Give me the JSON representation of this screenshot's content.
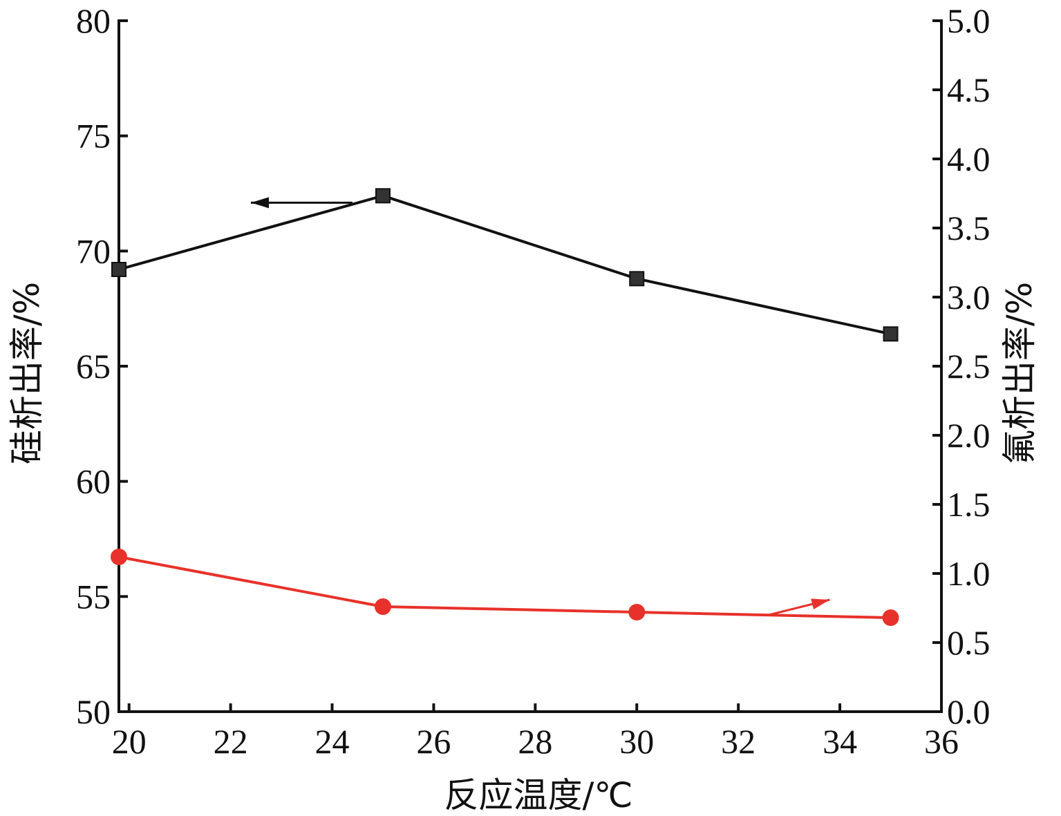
{
  "chart_data": {
    "type": "line",
    "xlabel": "反应温度/℃",
    "ylabel_left": "硅析出率/%",
    "ylabel_right": "氟析出率/%",
    "xlim": [
      19.8,
      36
    ],
    "ylim_left": [
      50,
      80
    ],
    "ylim_right": [
      0.0,
      5.0
    ],
    "x_ticks": [
      "20",
      "22",
      "24",
      "26",
      "28",
      "30",
      "32",
      "34",
      "36"
    ],
    "y_left_ticks": [
      "50",
      "55",
      "60",
      "65",
      "70",
      "75",
      "80"
    ],
    "y_right_ticks": [
      "0.0",
      "0.5",
      "1.0",
      "1.5",
      "2.0",
      "2.5",
      "3.0",
      "3.5",
      "4.0",
      "4.5",
      "5.0"
    ],
    "grid": false,
    "series": [
      {
        "axis": "left",
        "color": "#111111",
        "marker": "square",
        "x": [
          19.8,
          25,
          30,
          35
        ],
        "y": [
          69.2,
          72.4,
          68.8,
          66.4
        ]
      },
      {
        "axis": "right",
        "color": "#e8312a",
        "marker": "circle",
        "x": [
          19.8,
          25,
          30,
          35
        ],
        "y": [
          1.12,
          0.76,
          0.72,
          0.68
        ]
      }
    ],
    "annotations": [
      {
        "type": "arrow",
        "series": 0,
        "direction": "left",
        "from": [
          24.4,
          72.1
        ],
        "to": [
          22.4,
          72.1
        ]
      },
      {
        "type": "arrow",
        "series": 1,
        "direction": "right",
        "from": [
          32.6,
          0.7
        ],
        "to": [
          33.8,
          0.81
        ]
      }
    ]
  }
}
